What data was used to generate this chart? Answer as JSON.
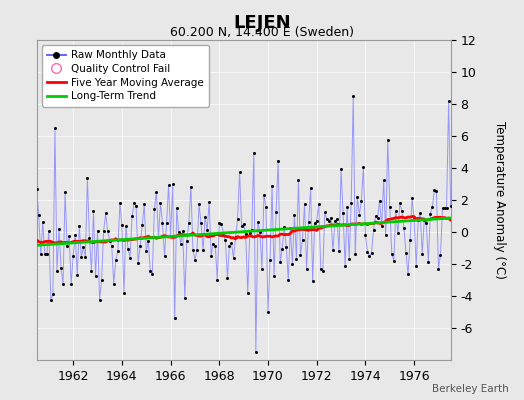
{
  "title": "LEJEN",
  "subtitle": "60.200 N, 14.400 E (Sweden)",
  "ylabel": "Temperature Anomaly (°C)",
  "credit": "Berkeley Earth",
  "xlim": [
    1960.5,
    1977.5
  ],
  "ylim": [
    -8,
    12
  ],
  "yticks": [
    -6,
    -4,
    -2,
    0,
    2,
    4,
    6,
    8,
    10,
    12
  ],
  "xticks": [
    1962,
    1964,
    1966,
    1968,
    1970,
    1972,
    1974,
    1976
  ],
  "bg_color": "#e8e8e8",
  "line_color": "#6666ff",
  "marker_color": "#000000",
  "moving_avg_color": "#ff0000",
  "trend_color": "#00cc00",
  "qc_marker_color": "#ff69b4",
  "seed": 42,
  "n_years": 18,
  "start_year": 1960
}
